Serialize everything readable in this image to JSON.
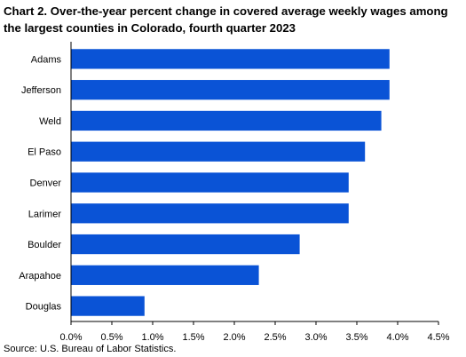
{
  "chart_data": {
    "type": "bar",
    "orientation": "horizontal",
    "title": "Chart 2. Over-the-year percent change in covered average weekly wages among the largest counties in Colorado, fourth quarter 2023",
    "categories": [
      "Adams",
      "Jefferson",
      "Weld",
      "El Paso",
      "Denver",
      "Larimer",
      "Boulder",
      "Arapahoe",
      "Douglas"
    ],
    "values": [
      3.9,
      3.9,
      3.8,
      3.6,
      3.4,
      3.4,
      2.8,
      2.3,
      0.9
    ],
    "xlim": [
      0,
      4.5
    ],
    "xticks": [
      0,
      0.5,
      1.0,
      1.5,
      2.0,
      2.5,
      3.0,
      3.5,
      4.0,
      4.5
    ],
    "xtick_labels": [
      "0.0%",
      "0.5%",
      "1.0%",
      "1.5%",
      "2.0%",
      "2.5%",
      "3.0%",
      "3.5%",
      "4.0%",
      "4.5%"
    ],
    "xlabel": "",
    "ylabel": "",
    "grid": false,
    "bar_color": "#0a53d6",
    "source": "Source: U.S. Bureau of Labor Statistics."
  }
}
